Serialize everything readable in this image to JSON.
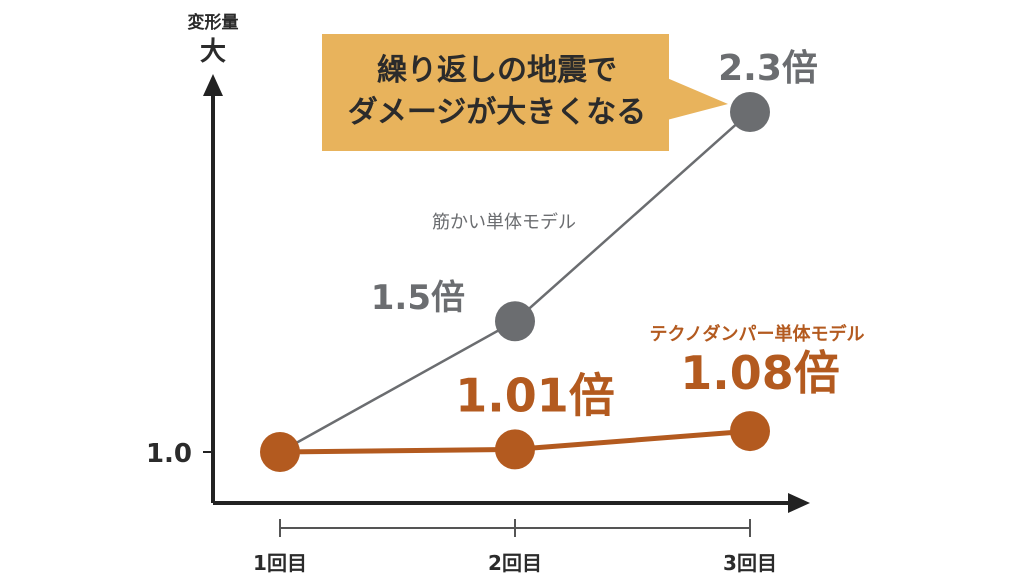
{
  "chart_data": {
    "type": "line",
    "categories": [
      "1回目",
      "2回目",
      "3回目"
    ],
    "series": [
      {
        "name": "筋かい単体モデル",
        "values": [
          1.0,
          1.5,
          2.3
        ],
        "point_labels": [
          "",
          "1.5倍",
          "2.3倍"
        ],
        "color": "#6b6d70"
      },
      {
        "name": "テクノダンパー単体モデル",
        "values": [
          1.0,
          1.01,
          1.08
        ],
        "point_labels": [
          "",
          "1.01倍",
          "1.08倍"
        ],
        "color": "#b35a1f"
      }
    ],
    "ylabel_top": "変形量",
    "ylabel_top_sub": "大",
    "y_tick_label": "1.0",
    "y_tick_value": 1.0,
    "ylim": [
      0.8,
      2.4
    ],
    "grid": false,
    "legend": "inline labels",
    "callout_lines": [
      "繰り返しの地震で",
      "ダメージが大きくなる"
    ],
    "callout_color": "#e8b35c"
  }
}
